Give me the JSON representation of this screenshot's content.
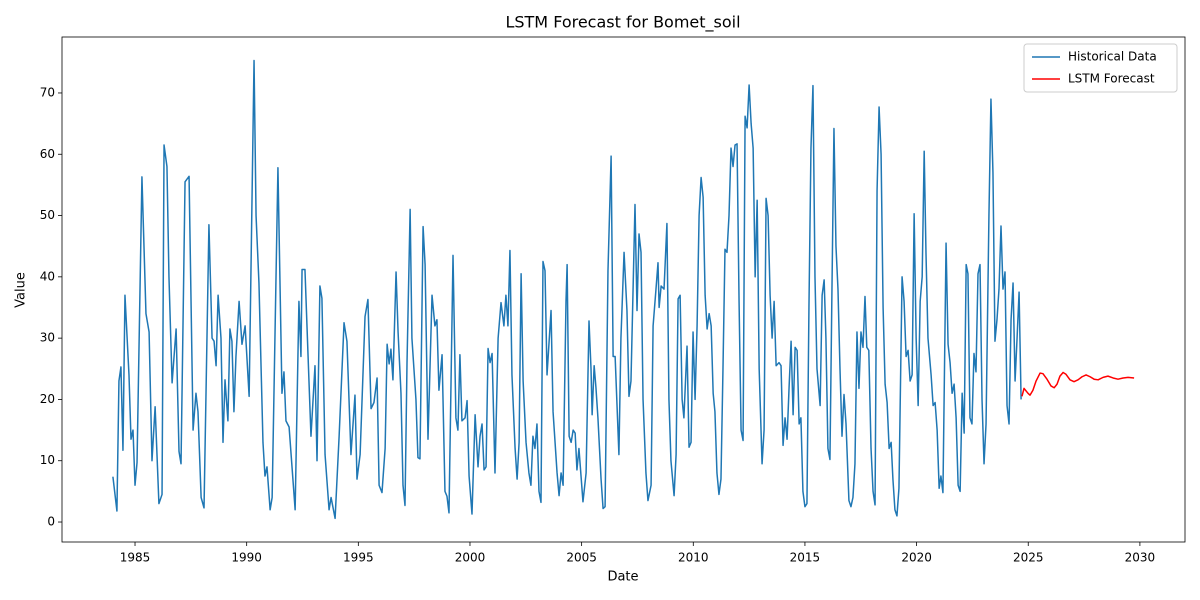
{
  "chart_data": {
    "type": "line",
    "title": "LSTM Forecast for Bomet_soil",
    "xlabel": "Date",
    "ylabel": "Value",
    "xlim": [
      1981.73,
      2032.02
    ],
    "ylim": [
      -3.26,
      79.13
    ],
    "xticks": [
      1985,
      1990,
      1995,
      2000,
      2005,
      2010,
      2015,
      2020,
      2025,
      2030
    ],
    "yticks": [
      0,
      10,
      20,
      30,
      40,
      50,
      60,
      70
    ],
    "legend": "upper right",
    "series": [
      {
        "name": "Historical Data",
        "color": "#1f77b4",
        "x": [
          1984.01,
          1984.19,
          1984.28,
          1984.37,
          1984.46,
          1984.55,
          1984.73,
          1984.82,
          1984.91,
          1985.0,
          1985.09,
          1985.31,
          1985.49,
          1985.63,
          1985.76,
          1985.9,
          1986.07,
          1986.21,
          1986.3,
          1986.43,
          1986.52,
          1986.66,
          1986.84,
          1986.97,
          1987.06,
          1987.24,
          1987.42,
          1987.6,
          1987.73,
          1987.82,
          1987.96,
          1988.09,
          1988.31,
          1988.45,
          1988.54,
          1988.63,
          1988.72,
          1988.85,
          1988.94,
          1989.03,
          1989.16,
          1989.25,
          1989.34,
          1989.43,
          1989.52,
          1989.66,
          1989.79,
          1989.93,
          1990.11,
          1990.33,
          1990.42,
          1990.55,
          1990.73,
          1990.82,
          1990.91,
          1991.05,
          1991.14,
          1991.4,
          1991.58,
          1991.67,
          1991.76,
          1991.9,
          1992.03,
          1992.17,
          1992.34,
          1992.43,
          1992.48,
          1992.61,
          1992.75,
          1992.88,
          1993.06,
          1993.15,
          1993.28,
          1993.37,
          1993.51,
          1993.69,
          1993.78,
          1993.96,
          1994.14,
          1994.36,
          1994.49,
          1994.67,
          1994.85,
          1994.94,
          1995.08,
          1995.3,
          1995.43,
          1995.57,
          1995.7,
          1995.84,
          1995.93,
          1996.06,
          1996.2,
          1996.29,
          1996.38,
          1996.46,
          1996.55,
          1996.69,
          1996.78,
          1996.91,
          1997.0,
          1997.09,
          1997.18,
          1997.32,
          1997.4,
          1997.58,
          1997.67,
          1997.76,
          1997.9,
          1997.99,
          1998.12,
          1998.3,
          1998.43,
          1998.52,
          1998.61,
          1998.75,
          1998.88,
          1998.97,
          1999.06,
          1999.24,
          1999.37,
          1999.46,
          1999.55,
          1999.64,
          1999.78,
          1999.87,
          1999.96,
          2000.09,
          2000.23,
          2000.36,
          2000.45,
          2000.54,
          2000.63,
          2000.72,
          2000.81,
          2000.9,
          2000.99,
          2001.12,
          2001.26,
          2001.39,
          2001.52,
          2001.61,
          2001.7,
          2001.79,
          2001.88,
          2002.02,
          2002.11,
          2002.2,
          2002.29,
          2002.38,
          2002.51,
          2002.64,
          2002.73,
          2002.82,
          2002.91,
          2003.0,
          2003.09,
          2003.18,
          2003.27,
          2003.36,
          2003.45,
          2003.63,
          2003.72,
          2003.9,
          2003.99,
          2004.08,
          2004.17,
          2004.3,
          2004.35,
          2004.44,
          2004.53,
          2004.62,
          2004.71,
          2004.79,
          2004.88,
          2005.06,
          2005.2,
          2005.33,
          2005.42,
          2005.47,
          2005.56,
          2005.64,
          2005.73,
          2005.87,
          2005.96,
          2006.05,
          2006.18,
          2006.32,
          2006.41,
          2006.5,
          2006.67,
          2006.76,
          2006.9,
          2007.03,
          2007.12,
          2007.21,
          2007.39,
          2007.48,
          2007.57,
          2007.66,
          2007.75,
          2007.88,
          2007.97,
          2008.11,
          2008.2,
          2008.33,
          2008.42,
          2008.47,
          2008.56,
          2008.69,
          2008.82,
          2008.91,
          2009.0,
          2009.14,
          2009.23,
          2009.32,
          2009.41,
          2009.5,
          2009.58,
          2009.72,
          2009.81,
          2009.9,
          2009.99,
          2010.08,
          2010.17,
          2010.26,
          2010.35,
          2010.44,
          2010.53,
          2010.62,
          2010.71,
          2010.8,
          2010.89,
          2010.97,
          2011.06,
          2011.15,
          2011.24,
          2011.33,
          2011.42,
          2011.51,
          2011.6,
          2011.69,
          2011.78,
          2011.87,
          2011.96,
          2012.05,
          2012.14,
          2012.23,
          2012.32,
          2012.41,
          2012.5,
          2012.59,
          2012.68,
          2012.77,
          2012.86,
          2012.95,
          2013.08,
          2013.17,
          2013.26,
          2013.35,
          2013.44,
          2013.53,
          2013.62,
          2013.71,
          2013.84,
          2013.93,
          2014.02,
          2014.11,
          2014.2,
          2014.29,
          2014.38,
          2014.47,
          2014.56,
          2014.65,
          2014.74,
          2014.82,
          2014.91,
          2015.0,
          2015.09,
          2015.18,
          2015.27,
          2015.36,
          2015.45,
          2015.54,
          2015.68,
          2015.77,
          2015.86,
          2015.94,
          2016.03,
          2016.12,
          2016.21,
          2016.3,
          2016.39,
          2016.48,
          2016.57,
          2016.66,
          2016.75,
          2016.84,
          2016.97,
          2017.06,
          2017.15,
          2017.24,
          2017.33,
          2017.42,
          2017.51,
          2017.6,
          2017.69,
          2017.77,
          2017.86,
          2017.96,
          2018.05,
          2018.14,
          2018.23,
          2018.32,
          2018.41,
          2018.5,
          2018.59,
          2018.68,
          2018.77,
          2018.86,
          2018.94,
          2019.03,
          2019.12,
          2019.21,
          2019.35,
          2019.44,
          2019.53,
          2019.62,
          2019.71,
          2019.8,
          2019.89,
          2019.98,
          2020.07,
          2020.16,
          2020.25,
          2020.34,
          2020.42,
          2020.51,
          2020.65,
          2020.74,
          2020.83,
          2020.92,
          2021.01,
          2021.09,
          2021.18,
          2021.32,
          2021.41,
          2021.5,
          2021.59,
          2021.68,
          2021.77,
          2021.86,
          2021.95,
          2022.04,
          2022.13,
          2022.22,
          2022.3,
          2022.39,
          2022.48,
          2022.57,
          2022.66,
          2022.75,
          2022.84,
          2022.93,
          2023.02,
          2023.11,
          2023.24,
          2023.33,
          2023.42,
          2023.51,
          2023.6,
          2023.69,
          2023.78,
          2023.87,
          2023.96,
          2024.05,
          2024.14,
          2024.23,
          2024.32,
          2024.41,
          2024.5,
          2024.59,
          2024.68
        ],
        "values": [
          7.4,
          1.8,
          23,
          25.3,
          11.7,
          37,
          24,
          13.5,
          15,
          6,
          9.7,
          56.3,
          34,
          31,
          10,
          18.8,
          3,
          4.5,
          61.5,
          58,
          40,
          22.7,
          31.5,
          11.5,
          9.5,
          55.5,
          56.4,
          15,
          21,
          18,
          4,
          2.3,
          48.5,
          30,
          29.5,
          25.5,
          37,
          30,
          13,
          23.2,
          16.5,
          31.5,
          29.5,
          18,
          27,
          36,
          29,
          32,
          20.5,
          75.3,
          50,
          39,
          13,
          7.5,
          9,
          2,
          4,
          57.8,
          21,
          24.5,
          16.5,
          15.5,
          9,
          2,
          36,
          27,
          41.2,
          41.2,
          27,
          14,
          25.5,
          10,
          38.5,
          36.5,
          11,
          2,
          4,
          0.6,
          14,
          32.5,
          29.5,
          11,
          20.7,
          7,
          11,
          33.5,
          36.3,
          18.5,
          19.5,
          23.5,
          6,
          4.8,
          12,
          29,
          25.8,
          28.2,
          23.2,
          40.8,
          31,
          21,
          6,
          2.7,
          26,
          51,
          30,
          20,
          10.5,
          10.3,
          48.2,
          42,
          13.5,
          37,
          32,
          33,
          21.5,
          27.3,
          5,
          4.2,
          1.5,
          43.5,
          17,
          15,
          27.3,
          16.5,
          17,
          19.8,
          7.5,
          1.3,
          17.5,
          9,
          14,
          16,
          8.5,
          9,
          28.3,
          26,
          27.5,
          8,
          30,
          35.8,
          32,
          37,
          32,
          44.3,
          24,
          12,
          7,
          13,
          40.5,
          23,
          13,
          8,
          6,
          14,
          12,
          16,
          5,
          3.2,
          42.5,
          41,
          24,
          34.5,
          18,
          8,
          4.3,
          8,
          6,
          36,
          42,
          14,
          13,
          15,
          14.5,
          8.5,
          12,
          3.3,
          8,
          32.8,
          25,
          17.5,
          25.5,
          22,
          17,
          7,
          2.2,
          2.5,
          41,
          59.7,
          27,
          27,
          11,
          30,
          44,
          34.5,
          20.5,
          23,
          51.8,
          34.5,
          47,
          44,
          20,
          8,
          3.5,
          6,
          32,
          38,
          42.3,
          35,
          38.5,
          38,
          48.7,
          20,
          10,
          4.3,
          11,
          36.4,
          37,
          20,
          17,
          28.7,
          12.2,
          13,
          31,
          20,
          32,
          50,
          56.2,
          53,
          37,
          31.5,
          34,
          32,
          21,
          18,
          8,
          4.5,
          7,
          25,
          44.5,
          44,
          50,
          61,
          58,
          61.5,
          61.7,
          36,
          15,
          13.3,
          66.2,
          64.3,
          71.3,
          65,
          61,
          40,
          52.5,
          25,
          9.5,
          15,
          52.8,
          50,
          37,
          30,
          36,
          25.5,
          26,
          25.5,
          12.5,
          17,
          13.5,
          22,
          29.5,
          17.5,
          28.5,
          28,
          16,
          17,
          5,
          2.5,
          3,
          35,
          61,
          71.2,
          40,
          25,
          19,
          37,
          39.5,
          30,
          12,
          10.2,
          38,
          64.2,
          45,
          38,
          25,
          14,
          20.8,
          16,
          3.5,
          2.5,
          4,
          9.5,
          31,
          21.8,
          31,
          28.5,
          36.8,
          28.5,
          28,
          12,
          5,
          2.8,
          54,
          67.7,
          60,
          35,
          22.5,
          19.5,
          12,
          13,
          7,
          2,
          1,
          5.5,
          40,
          36,
          27,
          28,
          23,
          24,
          50.3,
          30,
          19,
          36,
          40,
          60.5,
          44,
          30,
          24,
          19,
          19.5,
          15,
          5.5,
          7.5,
          4.8,
          45.5,
          29,
          26,
          21,
          22.5,
          17,
          6,
          5,
          21,
          14.5,
          42,
          40.5,
          17,
          16,
          27.5,
          24.5,
          40.5,
          42,
          20,
          9.5,
          16,
          50,
          69,
          57,
          29.5,
          33,
          38,
          48.3,
          38,
          40.8,
          19,
          16,
          33,
          39,
          23,
          30,
          37.5,
          20
        ]
      },
      {
        "name": "LSTM Forecast",
        "color": "#ff0000",
        "x": [
          2024.72,
          2024.81,
          2024.99,
          2025.08,
          2025.21,
          2025.35,
          2025.53,
          2025.66,
          2025.84,
          2026.02,
          2026.16,
          2026.29,
          2026.42,
          2026.56,
          2026.69,
          2026.87,
          2027.05,
          2027.23,
          2027.41,
          2027.59,
          2027.77,
          2027.95,
          2028.13,
          2028.35,
          2028.57,
          2028.8,
          2029.02,
          2029.25,
          2029.47,
          2029.74
        ],
        "values": [
          20.5,
          21.8,
          21,
          20.7,
          21.5,
          23,
          24.3,
          24.2,
          23.3,
          22.2,
          21.9,
          22.5,
          23.8,
          24.4,
          24.1,
          23.2,
          22.9,
          23.2,
          23.7,
          24,
          23.7,
          23.3,
          23.2,
          23.6,
          23.8,
          23.5,
          23.3,
          23.5,
          23.6,
          23.5
        ]
      }
    ]
  }
}
